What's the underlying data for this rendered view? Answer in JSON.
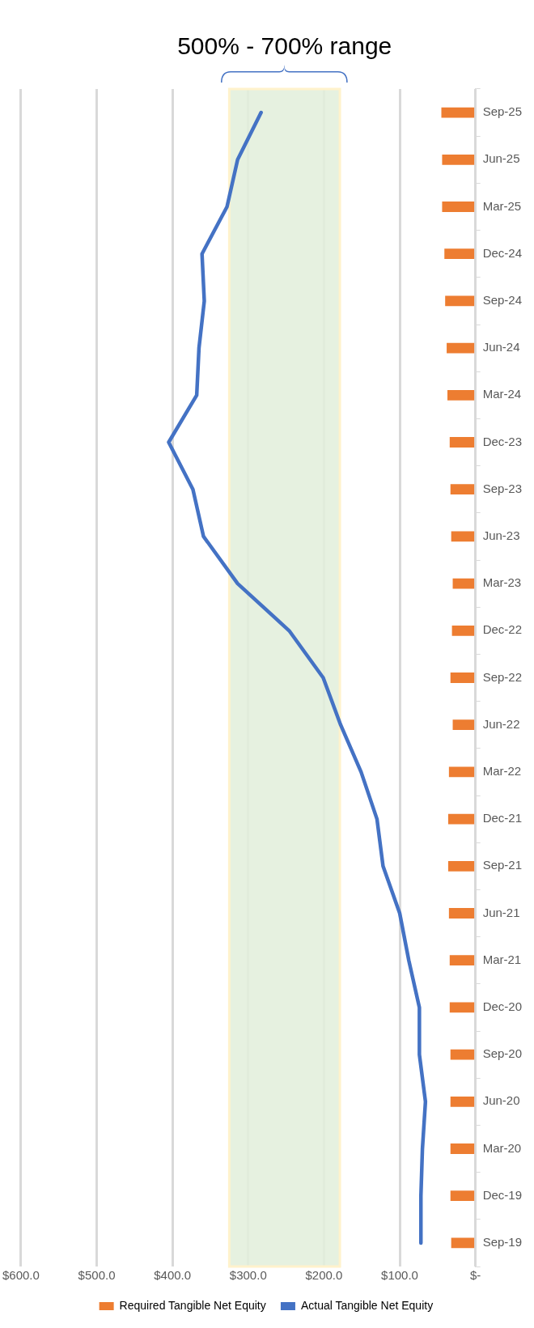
{
  "chart_data": {
    "type": "bar",
    "orientation": "horizontal",
    "categories": [
      "Sep-25",
      "Jun-25",
      "Mar-25",
      "Dec-24",
      "Sep-24",
      "Jun-24",
      "Mar-24",
      "Dec-23",
      "Sep-23",
      "Jun-23",
      "Mar-23",
      "Dec-22",
      "Sep-22",
      "Jun-22",
      "Mar-22",
      "Dec-21",
      "Sep-21",
      "Jun-21",
      "Mar-21",
      "Dec-20",
      "Sep-20",
      "Jun-20",
      "Mar-20",
      "Dec-19",
      "Sep-19"
    ],
    "series": [
      {
        "name": "Required Tangible Net Equity",
        "color": "#ed7d31",
        "values": [
          45,
          44,
          44,
          41,
          40,
          38,
          37,
          34,
          33,
          32,
          30,
          31,
          33,
          30,
          35,
          36,
          36,
          35,
          34,
          34,
          33,
          33,
          33,
          33,
          32
        ]
      },
      {
        "name": "Actual Tangible Net Equity",
        "type": "line",
        "color": "#4472c4",
        "values": [
          283,
          314,
          328,
          361,
          358,
          365,
          368,
          405,
          373,
          359,
          314,
          246,
          201,
          178,
          151,
          130,
          122,
          100,
          88,
          74,
          74,
          66,
          70,
          72,
          72
        ]
      }
    ],
    "xlim": [
      600,
      0
    ],
    "xticks": [
      {
        "value": 600,
        "label": "$600.0"
      },
      {
        "value": 500,
        "label": "$500.0"
      },
      {
        "value": 400,
        "label": "$400.0"
      },
      {
        "value": 300,
        "label": "$300.0"
      },
      {
        "value": 200,
        "label": "$200.0"
      },
      {
        "value": 100,
        "label": "$100.0"
      },
      {
        "value": 0,
        "label": "$-"
      }
    ],
    "bands": [
      {
        "axis": "x",
        "from": 179,
        "to": 325,
        "label": "500% - 700% range",
        "color": "#e2efda"
      }
    ],
    "grid": "x",
    "legend": "bottom",
    "marker": "none"
  }
}
